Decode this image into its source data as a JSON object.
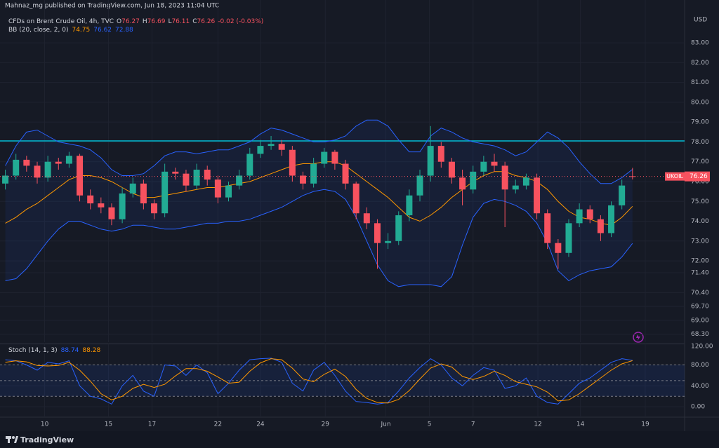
{
  "header": {
    "publisher": "Mahnaz_mg published on TradingView.com, Jun 18, 2023 11:04 UTC"
  },
  "chart_data": [
    {
      "type": "candlestick",
      "title": "CFDs on Brent Crude Oil, 4h, TVC",
      "ohlc_prefixes": [
        "O",
        "H",
        "L",
        "C"
      ],
      "change": "-0.02 (-0.03%)",
      "currency": "USD",
      "symbol": "UKOIL",
      "up_color": "#22ab94",
      "down_color": "#f7525f",
      "open": [
        75.9,
        76.3,
        77.1,
        76.8,
        76.2,
        77.0,
        76.9,
        77.3,
        75.3,
        74.9,
        74.7,
        74.1,
        75.4,
        75.9,
        74.9,
        74.4,
        76.5,
        76.4,
        75.8,
        76.6,
        76.1,
        75.2,
        75.8,
        76.3,
        77.4,
        77.8,
        77.9,
        77.6,
        76.3,
        75.9,
        76.9,
        77.5,
        76.9,
        75.9,
        74.4,
        73.9,
        72.9,
        73.0,
        74.3,
        75.3,
        76.3,
        77.8,
        77.0,
        76.2,
        75.6,
        76.5,
        77.0,
        76.8,
        75.6,
        75.8,
        76.2,
        74.4,
        72.9,
        72.4,
        73.9,
        74.6,
        74.1,
        73.4,
        74.8,
        76.27
      ],
      "high": [
        76.6,
        77.4,
        77.3,
        77.0,
        77.3,
        77.2,
        77.5,
        77.4,
        75.6,
        75.2,
        74.9,
        75.7,
        76.2,
        76.1,
        75.1,
        76.9,
        76.7,
        76.6,
        76.9,
        76.8,
        76.3,
        76.0,
        76.6,
        77.7,
        78.1,
        78.3,
        78.1,
        77.8,
        76.5,
        77.2,
        77.7,
        77.6,
        77.1,
        76.0,
        74.7,
        74.1,
        73.4,
        74.5,
        75.6,
        76.6,
        78.8,
        78.0,
        77.2,
        76.6,
        76.8,
        77.3,
        77.4,
        77.0,
        76.1,
        76.4,
        76.4,
        74.6,
        73.1,
        74.1,
        74.9,
        74.8,
        74.3,
        75.0,
        76.1,
        76.69
      ],
      "low": [
        75.6,
        76.1,
        76.5,
        75.9,
        76.0,
        76.6,
        76.7,
        75.0,
        74.6,
        74.4,
        73.8,
        73.9,
        75.2,
        74.6,
        74.1,
        74.2,
        76.1,
        75.5,
        75.6,
        75.8,
        74.9,
        75.0,
        75.6,
        76.1,
        77.2,
        77.6,
        77.3,
        76.0,
        75.6,
        75.7,
        76.7,
        76.6,
        75.6,
        74.1,
        73.6,
        71.6,
        72.6,
        72.8,
        74.0,
        75.0,
        76.0,
        76.7,
        75.9,
        74.8,
        75.4,
        76.3,
        76.5,
        73.7,
        75.4,
        75.6,
        74.1,
        72.6,
        71.6,
        72.2,
        73.7,
        73.9,
        73.0,
        73.2,
        74.6,
        76.11
      ],
      "close": [
        76.3,
        77.1,
        76.8,
        76.2,
        77.0,
        76.9,
        77.3,
        75.3,
        74.9,
        74.7,
        74.1,
        75.4,
        75.9,
        74.9,
        74.4,
        76.5,
        76.4,
        75.8,
        76.6,
        76.1,
        75.2,
        75.8,
        76.3,
        77.4,
        77.8,
        77.9,
        77.6,
        76.3,
        75.9,
        76.9,
        77.5,
        76.9,
        75.9,
        74.4,
        73.9,
        72.9,
        73.0,
        74.3,
        75.3,
        76.3,
        77.8,
        77.0,
        76.2,
        75.6,
        76.5,
        77.0,
        76.8,
        75.6,
        75.8,
        76.2,
        74.4,
        72.9,
        72.4,
        73.9,
        74.6,
        74.1,
        73.4,
        74.8,
        75.8,
        76.26
      ],
      "indicator": "BB (20, close, 2, 0)",
      "series": [
        {
          "color": "#ff9800",
          "values": [
            73.9,
            74.2,
            74.6,
            74.9,
            75.3,
            75.7,
            76.1,
            76.3,
            76.3,
            76.2,
            76.0,
            75.7,
            75.4,
            75.2,
            75.2,
            75.3,
            75.4,
            75.5,
            75.6,
            75.7,
            75.7,
            75.8,
            75.9,
            76.0,
            76.2,
            76.4,
            76.6,
            76.8,
            76.9,
            76.9,
            77.0,
            77.0,
            76.8,
            76.4,
            76.0,
            75.6,
            75.2,
            74.7,
            74.2,
            74.0,
            74.3,
            74.7,
            75.2,
            75.6,
            76.0,
            76.3,
            76.5,
            76.5,
            76.3,
            76.2,
            76.0,
            75.6,
            75.0,
            74.5,
            74.2,
            74.1,
            73.9,
            73.8,
            74.2,
            74.75
          ]
        },
        {
          "color": "#2962ff",
          "values": [
            76.8,
            77.8,
            78.5,
            78.6,
            78.3,
            78.0,
            77.9,
            77.8,
            77.6,
            77.2,
            76.6,
            76.3,
            76.3,
            76.4,
            76.8,
            77.3,
            77.5,
            77.5,
            77.4,
            77.5,
            77.6,
            77.6,
            77.8,
            78.0,
            78.4,
            78.7,
            78.6,
            78.4,
            78.2,
            78.0,
            78.0,
            78.1,
            78.3,
            78.8,
            79.1,
            79.1,
            78.8,
            78.1,
            77.5,
            77.5,
            78.3,
            78.7,
            78.5,
            78.2,
            78.0,
            77.9,
            77.8,
            77.6,
            77.3,
            77.5,
            78.0,
            78.5,
            78.2,
            77.7,
            77.0,
            76.4,
            75.9,
            75.9,
            76.2,
            76.62
          ]
        },
        {
          "color": "#2962ff",
          "values": [
            71.0,
            71.1,
            71.6,
            72.3,
            73.0,
            73.6,
            74.0,
            74.0,
            73.8,
            73.6,
            73.5,
            73.6,
            73.8,
            73.8,
            73.7,
            73.6,
            73.6,
            73.7,
            73.8,
            73.9,
            73.9,
            74.0,
            74.0,
            74.1,
            74.3,
            74.5,
            74.7,
            75.0,
            75.3,
            75.5,
            75.6,
            75.5,
            75.1,
            74.2,
            73.0,
            71.8,
            71.0,
            70.7,
            70.8,
            70.8,
            70.8,
            70.7,
            71.2,
            72.8,
            74.2,
            74.9,
            75.1,
            75.0,
            74.8,
            74.5,
            73.9,
            72.9,
            71.5,
            71.0,
            71.3,
            71.5,
            71.6,
            71.7,
            72.2,
            72.88
          ]
        }
      ],
      "band_fill": "rgba(41,98,255,0.08)",
      "hline": {
        "value": 78.05,
        "color": "#00bcd4"
      },
      "xlim": [
        0,
        64.4
      ],
      "xticks": [
        {
          "value": 4.2,
          "label": "10"
        },
        {
          "value": 10.2,
          "label": "15"
        },
        {
          "value": 14.3,
          "label": "17"
        },
        {
          "value": 20.5,
          "label": "22"
        },
        {
          "value": 24.5,
          "label": "24"
        },
        {
          "value": 30.6,
          "label": "29"
        },
        {
          "value": 36.3,
          "label": "Jun"
        },
        {
          "value": 40.4,
          "label": "5"
        },
        {
          "value": 44.5,
          "label": "7"
        },
        {
          "value": 50.6,
          "label": "12"
        },
        {
          "value": 54.6,
          "label": "14"
        },
        {
          "value": 60.7,
          "label": "19"
        }
      ],
      "ylim": [
        67.9,
        85.16
      ],
      "yticks": [
        {
          "value": 83,
          "label": "83.00"
        },
        {
          "value": 82,
          "label": "82.00"
        },
        {
          "value": 81,
          "label": "81.00"
        },
        {
          "value": 80,
          "label": "80.00"
        },
        {
          "value": 79,
          "label": "79.00"
        },
        {
          "value": 78,
          "label": "78.00"
        },
        {
          "value": 77,
          "label": "77.00"
        },
        {
          "value": 76,
          "label": "76.00"
        },
        {
          "value": 75,
          "label": "75.00"
        },
        {
          "value": 74,
          "label": "74.00"
        },
        {
          "value": 73,
          "label": "73.00"
        },
        {
          "value": 72,
          "label": "72.00"
        },
        {
          "value": 71.4,
          "label": "71.40"
        },
        {
          "value": 70.4,
          "label": "70.40"
        },
        {
          "value": 69.7,
          "label": "69.70"
        },
        {
          "value": 69,
          "label": "69.00"
        },
        {
          "value": 68.3,
          "label": "68.30"
        }
      ],
      "grid": true
    },
    {
      "type": "line",
      "title": "Stoch (14, 1, 3)",
      "series": [
        {
          "color": "#2962ff",
          "values": [
            90,
            88,
            80,
            70,
            85,
            82,
            88,
            40,
            20,
            15,
            5,
            40,
            60,
            30,
            20,
            80,
            78,
            60,
            80,
            65,
            25,
            45,
            70,
            90,
            92,
            93,
            85,
            45,
            30,
            70,
            85,
            60,
            30,
            10,
            8,
            5,
            8,
            30,
            55,
            75,
            92,
            80,
            55,
            40,
            60,
            75,
            70,
            35,
            40,
            55,
            20,
            8,
            5,
            25,
            45,
            55,
            70,
            85,
            92,
            88.74
          ]
        },
        {
          "color": "#ff9800",
          "values": [
            85,
            88,
            86,
            79,
            78,
            79,
            85,
            70,
            49,
            25,
            13,
            20,
            35,
            43,
            37,
            43,
            59,
            73,
            73,
            68,
            57,
            45,
            47,
            68,
            84,
            92,
            90,
            74,
            53,
            48,
            62,
            72,
            58,
            33,
            16,
            8,
            7,
            14,
            31,
            53,
            74,
            82,
            76,
            58,
            52,
            58,
            68,
            60,
            48,
            43,
            38,
            28,
            11,
            13,
            25,
            40,
            55,
            70,
            82,
            88.28
          ]
        }
      ],
      "band": [
        20,
        80
      ],
      "midline": 50,
      "band_fill": "rgba(41,98,255,0.1)",
      "ylim": [
        -20,
        121
      ],
      "yticks": [
        {
          "value": 120,
          "label": "120.00"
        },
        {
          "value": 80,
          "label": "80.00"
        },
        {
          "value": 40,
          "label": "40.00"
        },
        {
          "value": 0,
          "label": "0.00"
        }
      ]
    }
  ],
  "footer": {
    "brand": "TradingView"
  }
}
